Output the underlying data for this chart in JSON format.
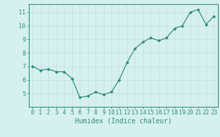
{
  "x": [
    0,
    1,
    2,
    3,
    4,
    5,
    6,
    7,
    8,
    9,
    10,
    11,
    12,
    13,
    14,
    15,
    16,
    17,
    18,
    19,
    20,
    21,
    22,
    23
  ],
  "y": [
    7.0,
    6.7,
    6.8,
    6.6,
    6.6,
    6.1,
    4.7,
    4.8,
    5.1,
    4.9,
    5.1,
    6.0,
    7.3,
    8.3,
    8.8,
    9.1,
    8.9,
    9.1,
    9.8,
    10.0,
    11.0,
    11.2,
    10.1,
    10.7
  ],
  "xlim": [
    -0.5,
    23.5
  ],
  "ylim": [
    4.0,
    11.6
  ],
  "yticks": [
    5,
    6,
    7,
    8,
    9,
    10,
    11
  ],
  "xticks": [
    0,
    1,
    2,
    3,
    4,
    5,
    6,
    7,
    8,
    9,
    10,
    11,
    12,
    13,
    14,
    15,
    16,
    17,
    18,
    19,
    20,
    21,
    22,
    23
  ],
  "xlabel": "Humidex (Indice chaleur)",
  "line_color": "#2e8b7a",
  "marker": "D",
  "marker_size": 2.0,
  "bg_color": "#d6f0f0",
  "grid_color": "#c0e0e0",
  "axis_color": "#2e8b7a",
  "tick_color": "#2e8b7a",
  "label_color": "#2e8b7a",
  "xlabel_fontsize": 7,
  "tick_fontsize": 6,
  "linewidth": 0.9
}
